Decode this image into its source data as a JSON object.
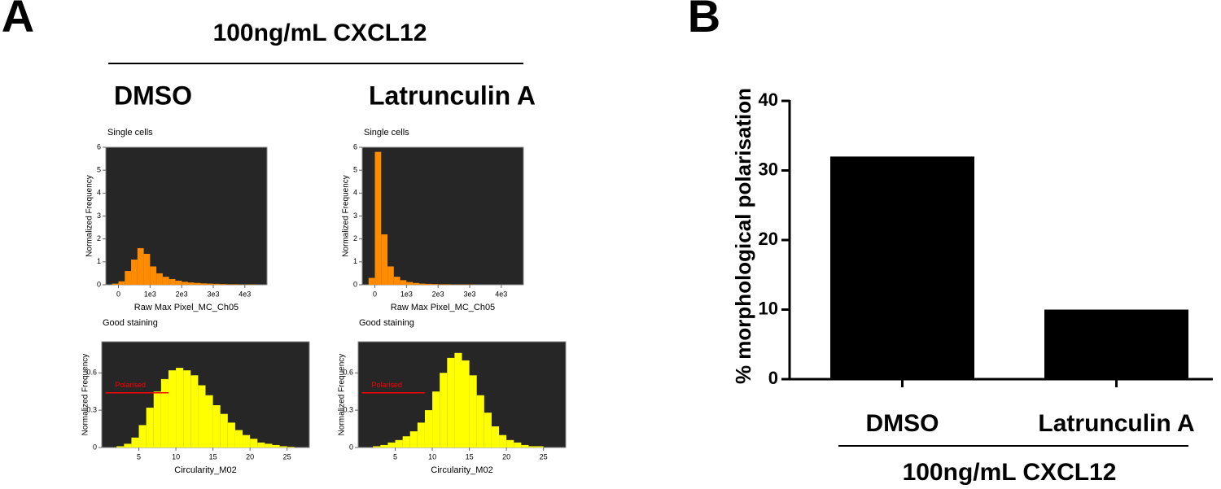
{
  "figure": {
    "panel_a_label": "A",
    "panel_a_title": "100ng/mL CXCL12",
    "conditions": [
      "DMSO",
      "Latrunculin A"
    ],
    "panel_b_label": "B"
  },
  "chart_data": [
    {
      "type": "histogram",
      "title": "Single cells",
      "xlabel": "Raw Max Pixel_MC_Ch05",
      "ylabel": "Normalized Frequency",
      "color": "#ff8c00",
      "background": "#262626",
      "bins": [
        -400,
        -200,
        0,
        200,
        400,
        600,
        800,
        1000,
        1200,
        1400,
        1600,
        1800,
        2000,
        2200,
        2400,
        2600,
        2800,
        3000,
        3200,
        3400,
        3600,
        3800,
        4000,
        4200,
        4400,
        4600
      ],
      "values": [
        0,
        0.05,
        0.15,
        0.6,
        1.1,
        1.6,
        1.35,
        0.8,
        0.5,
        0.35,
        0.25,
        0.18,
        0.13,
        0.1,
        0.08,
        0.06,
        0.05,
        0.04,
        0.03,
        0.02,
        0.02,
        0.01,
        0.01,
        0.01,
        0
      ],
      "xlim": [
        -400,
        4700
      ],
      "ylim": [
        0,
        6
      ],
      "xticks": [
        0,
        {
          "value": 1000,
          "label": "1e3"
        },
        {
          "value": 2000,
          "label": "2e3"
        },
        {
          "value": 3000,
          "label": "3e3"
        },
        {
          "value": 4000,
          "label": "4e3"
        }
      ],
      "yticks": [
        0,
        1,
        2,
        3,
        4,
        5,
        6
      ]
    },
    {
      "type": "histogram",
      "title": "Single cells",
      "xlabel": "Raw Max Pixel_MC_Ch05",
      "ylabel": "Normalized Frequency",
      "color": "#ff8c00",
      "background": "#262626",
      "bins": [
        -400,
        -200,
        0,
        200,
        400,
        600,
        800,
        1000,
        1200,
        1400,
        1600,
        1800,
        2000,
        2200,
        2400,
        2600,
        2800,
        3000,
        3200,
        3400,
        3600,
        3800,
        4000,
        4200,
        4400,
        4600
      ],
      "values": [
        0,
        0.3,
        5.8,
        2.2,
        0.8,
        0.35,
        0.2,
        0.12,
        0.08,
        0.05,
        0.04,
        0.03,
        0.02,
        0.02,
        0.01,
        0.01,
        0.01,
        0.01,
        0,
        0,
        0,
        0,
        0,
        0,
        0
      ],
      "xlim": [
        -400,
        4700
      ],
      "ylim": [
        0,
        6
      ],
      "xticks": [
        0,
        {
          "value": 1000,
          "label": "1e3"
        },
        {
          "value": 2000,
          "label": "2e3"
        },
        {
          "value": 3000,
          "label": "3e3"
        },
        {
          "value": 4000,
          "label": "4e3"
        }
      ],
      "yticks": [
        0,
        1,
        2,
        3,
        4,
        5,
        6
      ]
    },
    {
      "type": "histogram",
      "title": "Good staining",
      "xlabel": "Circularity_M02",
      "ylabel": "Normalized Frequency",
      "color": "#ffff00",
      "background": "#262626",
      "bins": [
        0,
        1,
        2,
        3,
        4,
        5,
        6,
        7,
        8,
        9,
        10,
        11,
        12,
        13,
        14,
        15,
        16,
        17,
        18,
        19,
        20,
        21,
        22,
        23,
        24,
        25,
        26,
        27,
        28
      ],
      "values": [
        0,
        0,
        0.01,
        0.03,
        0.08,
        0.18,
        0.32,
        0.45,
        0.55,
        0.62,
        0.64,
        0.62,
        0.58,
        0.5,
        0.42,
        0.34,
        0.27,
        0.2,
        0.14,
        0.1,
        0.07,
        0.04,
        0.03,
        0.02,
        0.01,
        0.005,
        0,
        0
      ],
      "xlim": [
        0,
        28
      ],
      "ylim": [
        0,
        0.85
      ],
      "xticks": [
        5,
        10,
        15,
        20,
        25
      ],
      "yticks": [
        0,
        0.3,
        0.6
      ],
      "gate": {
        "label": "Polarised",
        "x": [
          0.5,
          9
        ],
        "y": 0.44,
        "color": "#ff0000"
      }
    },
    {
      "type": "histogram",
      "title": "Good staining",
      "xlabel": "Circularity_M02",
      "ylabel": "Normalized Frequency",
      "color": "#ffff00",
      "background": "#262626",
      "bins": [
        0,
        1,
        2,
        3,
        4,
        5,
        6,
        7,
        8,
        9,
        10,
        11,
        12,
        13,
        14,
        15,
        16,
        17,
        18,
        19,
        20,
        21,
        22,
        23,
        24,
        25,
        26,
        27,
        28
      ],
      "values": [
        0,
        0,
        0.01,
        0.02,
        0.04,
        0.06,
        0.09,
        0.13,
        0.2,
        0.3,
        0.45,
        0.6,
        0.72,
        0.76,
        0.7,
        0.58,
        0.42,
        0.28,
        0.17,
        0.1,
        0.06,
        0.04,
        0.02,
        0.01,
        0.01,
        0,
        0,
        0
      ],
      "xlim": [
        0,
        28
      ],
      "ylim": [
        0,
        0.85
      ],
      "xticks": [
        5,
        10,
        15,
        20,
        25
      ],
      "yticks": [
        0,
        0.3,
        0.6
      ],
      "gate": {
        "label": "Polarised",
        "x": [
          0.5,
          9
        ],
        "y": 0.44,
        "color": "#ff0000"
      }
    },
    {
      "type": "bar",
      "ylabel": "% morphological polarisation",
      "group_label": "100ng/mL CXCL12",
      "color": "#000000",
      "categories": [
        "DMSO",
        "Latrunculin A"
      ],
      "values": [
        32,
        10
      ],
      "ylim": [
        0,
        40
      ],
      "yticks": [
        0,
        10,
        20,
        30,
        40
      ]
    }
  ]
}
